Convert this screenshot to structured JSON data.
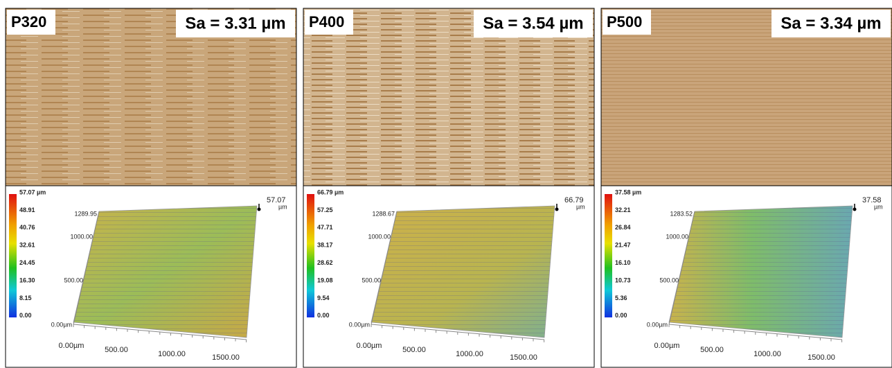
{
  "panels": [
    {
      "label": "P320",
      "sa": "Sa = 3.31 µm",
      "scale": [
        "57.07 µm",
        "48.91",
        "40.76",
        "32.61",
        "24.45",
        "16.30",
        "8.15",
        "0.00"
      ],
      "max_value": "57.07",
      "max_unit": "µm",
      "y_labels": [
        "1289.95",
        "1000.00",
        "500.00",
        "0.00µm"
      ],
      "x_labels": [
        "0.00µm",
        "500.00",
        "1000.00",
        "1500.00"
      ]
    },
    {
      "label": "P400",
      "sa": "Sa = 3.54 µm",
      "scale": [
        "66.79 µm",
        "57.25",
        "47.71",
        "38.17",
        "28.62",
        "19.08",
        "9.54",
        "0.00"
      ],
      "max_value": "66.79",
      "max_unit": "µm",
      "y_labels": [
        "1288.67",
        "1000.00",
        "500.00",
        "0.00µm"
      ],
      "x_labels": [
        "0.00µm",
        "500.00",
        "1000.00",
        "1500.00"
      ]
    },
    {
      "label": "P500",
      "sa": "Sa = 3.34 µm",
      "scale": [
        "37.58 µm",
        "32.21",
        "26.84",
        "21.47",
        "16.10",
        "10.73",
        "5.36",
        "0.00"
      ],
      "max_value": "37.58",
      "max_unit": "µm",
      "y_labels": [
        "1283.52",
        "1000.00",
        "500.00",
        "0.00µm"
      ],
      "x_labels": [
        "0.00µm",
        "500.00",
        "1000.00",
        "1500.00"
      ]
    }
  ]
}
